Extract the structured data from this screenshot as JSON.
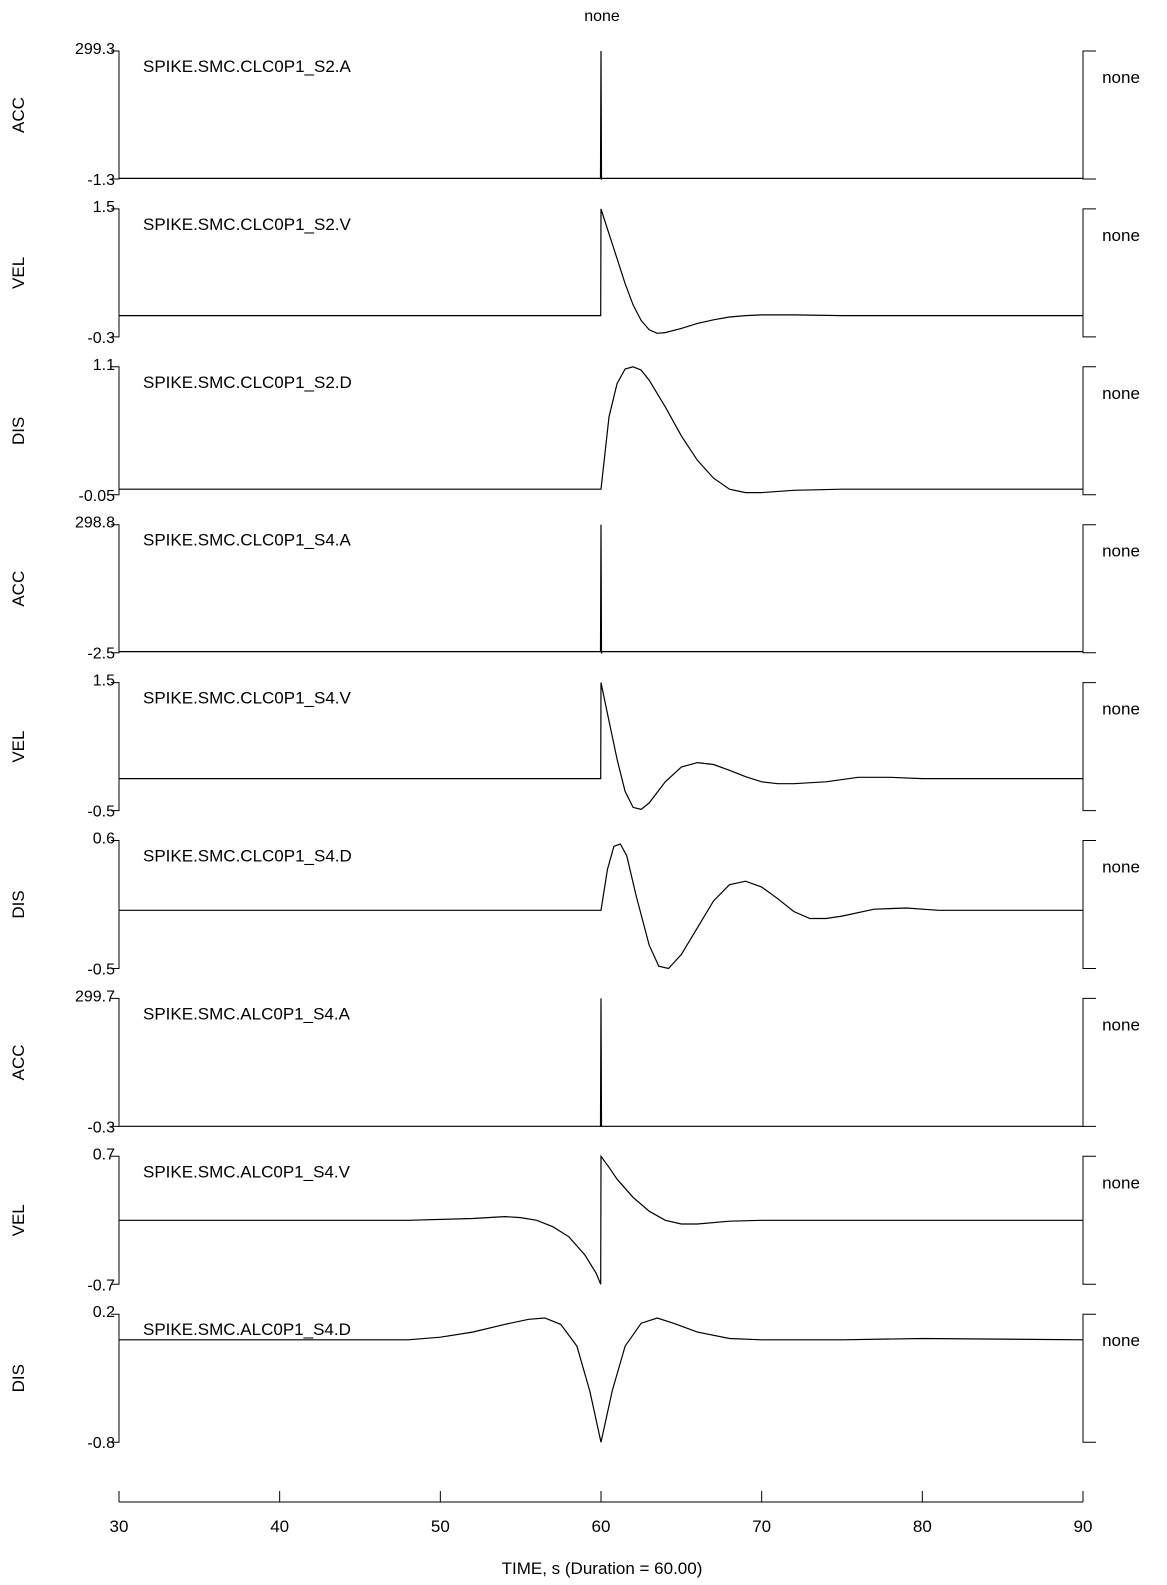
{
  "chart_data": {
    "type": "line",
    "title": "none",
    "xlabel": "TIME, s   (Duration =  60.00)",
    "xlim": [
      30,
      90
    ],
    "x_ticks": [
      "30",
      "40",
      "50",
      "60",
      "70",
      "80",
      "90"
    ],
    "right_label": "none",
    "grid": false,
    "panels": [
      {
        "ylabel": "ACC",
        "name": "SPIKE.SMC.CLC0P1_S2.A",
        "ymax_label": "299.3",
        "ymin_label": "-1.3",
        "ylim": [
          -1.3,
          299.3
        ],
        "x": [
          30,
          59.9,
          59.97,
          60.0,
          60.03,
          60.1,
          62,
          90
        ],
        "y": [
          0,
          0,
          0,
          299.3,
          -1.3,
          0,
          0,
          0
        ]
      },
      {
        "ylabel": "VEL",
        "name": "SPIKE.SMC.CLC0P1_S2.V",
        "ymax_label": "1.5",
        "ymin_label": "-0.3",
        "ylim": [
          -0.3,
          1.5
        ],
        "x": [
          30,
          59.98,
          60.0,
          60.5,
          61,
          61.5,
          62,
          62.5,
          63,
          63.5,
          64,
          65,
          66,
          67,
          68,
          69,
          70,
          72,
          75,
          90
        ],
        "y": [
          0,
          0,
          1.5,
          1.15,
          0.8,
          0.45,
          0.15,
          -0.07,
          -0.2,
          -0.25,
          -0.24,
          -0.18,
          -0.11,
          -0.06,
          -0.02,
          0.0,
          0.01,
          0.01,
          0,
          0
        ]
      },
      {
        "ylabel": "DIS",
        "name": "SPIKE.SMC.CLC0P1_S2.D",
        "ymax_label": "1.1",
        "ymin_label": "-0.05",
        "ylim": [
          -0.05,
          1.1
        ],
        "x": [
          30,
          60,
          60.5,
          61,
          61.5,
          62,
          62.5,
          63,
          64,
          65,
          66,
          67,
          68,
          69,
          70,
          72,
          75,
          90
        ],
        "y": [
          0,
          0,
          0.65,
          0.95,
          1.08,
          1.1,
          1.07,
          0.98,
          0.74,
          0.48,
          0.26,
          0.1,
          0.0,
          -0.03,
          -0.03,
          -0.01,
          0,
          0
        ]
      },
      {
        "ylabel": "ACC",
        "name": "SPIKE.SMC.CLC0P1_S4.A",
        "ymax_label": "298.8",
        "ymin_label": "-2.5",
        "ylim": [
          -2.5,
          298.8
        ],
        "x": [
          30,
          59.9,
          59.97,
          60.0,
          60.03,
          60.1,
          62,
          90
        ],
        "y": [
          0,
          0,
          0,
          298.8,
          -2.5,
          0,
          0,
          0
        ]
      },
      {
        "ylabel": "VEL",
        "name": "SPIKE.SMC.CLC0P1_S4.V",
        "ymax_label": "1.5",
        "ymin_label": "-0.5",
        "ylim": [
          -0.5,
          1.5
        ],
        "x": [
          30,
          59.98,
          60.0,
          60.5,
          61,
          61.5,
          62,
          62.5,
          63,
          64,
          65,
          66,
          67,
          68,
          69,
          70,
          71,
          72,
          74,
          76,
          78,
          80,
          90
        ],
        "y": [
          0,
          0,
          1.5,
          0.9,
          0.3,
          -0.2,
          -0.45,
          -0.48,
          -0.38,
          -0.05,
          0.18,
          0.25,
          0.22,
          0.13,
          0.03,
          -0.05,
          -0.08,
          -0.08,
          -0.05,
          0.02,
          0.02,
          0.0,
          0
        ]
      },
      {
        "ylabel": "DIS",
        "name": "SPIKE.SMC.CLC0P1_S4.D",
        "ymax_label": "0.6",
        "ymin_label": "-0.5",
        "ylim": [
          -0.5,
          0.6
        ],
        "x": [
          30,
          60,
          60.4,
          60.8,
          61.2,
          61.6,
          62.2,
          63,
          63.6,
          64.2,
          65,
          66,
          67,
          68,
          69,
          70,
          71,
          72,
          73,
          74,
          75,
          77,
          79,
          81,
          83,
          90
        ],
        "y": [
          0,
          0,
          0.35,
          0.55,
          0.57,
          0.47,
          0.12,
          -0.3,
          -0.48,
          -0.5,
          -0.38,
          -0.15,
          0.08,
          0.22,
          0.25,
          0.2,
          0.1,
          -0.01,
          -0.07,
          -0.07,
          -0.05,
          0.01,
          0.02,
          0.0,
          0,
          0
        ]
      },
      {
        "ylabel": "ACC",
        "name": "SPIKE.SMC.ALC0P1_S4.A",
        "ymax_label": "299.7",
        "ymin_label": "-0.3",
        "ylim": [
          -0.3,
          299.7
        ],
        "x": [
          30,
          59.9,
          59.97,
          60.0,
          60.03,
          60.1,
          62,
          90
        ],
        "y": [
          0,
          0,
          0,
          299.7,
          -0.3,
          0,
          0,
          0
        ]
      },
      {
        "ylabel": "VEL",
        "name": "SPIKE.SMC.ALC0P1_S4.V",
        "ymax_label": "0.7",
        "ymin_label": "-0.7",
        "ylim": [
          -0.7,
          0.7
        ],
        "x": [
          30,
          48,
          52,
          54,
          55,
          56,
          57,
          58,
          59,
          59.7,
          59.98,
          60.0,
          60.5,
          61,
          62,
          63,
          64,
          65,
          66,
          68,
          70,
          90
        ],
        "y": [
          0,
          0,
          0.02,
          0.04,
          0.03,
          0.0,
          -0.07,
          -0.18,
          -0.38,
          -0.58,
          -0.7,
          0.7,
          0.58,
          0.45,
          0.25,
          0.1,
          0.0,
          -0.04,
          -0.04,
          -0.01,
          0,
          0
        ]
      },
      {
        "ylabel": "DIS",
        "name": "SPIKE.SMC.ALC0P1_S4.D",
        "ymax_label": "0.2",
        "ymin_label": "-0.8",
        "ylim": [
          -0.8,
          0.2
        ],
        "x": [
          30,
          45,
          48,
          50,
          52,
          54,
          55.5,
          56.5,
          57.5,
          58.5,
          59.3,
          60.0,
          60.7,
          61.5,
          62.5,
          63.5,
          64.5,
          66,
          68,
          70,
          75,
          80,
          90
        ],
        "y": [
          0,
          0,
          0.0,
          0.02,
          0.06,
          0.12,
          0.16,
          0.17,
          0.12,
          -0.05,
          -0.4,
          -0.8,
          -0.4,
          -0.05,
          0.13,
          0.17,
          0.13,
          0.06,
          0.01,
          0.0,
          0.0,
          0.01,
          0
        ]
      }
    ]
  }
}
